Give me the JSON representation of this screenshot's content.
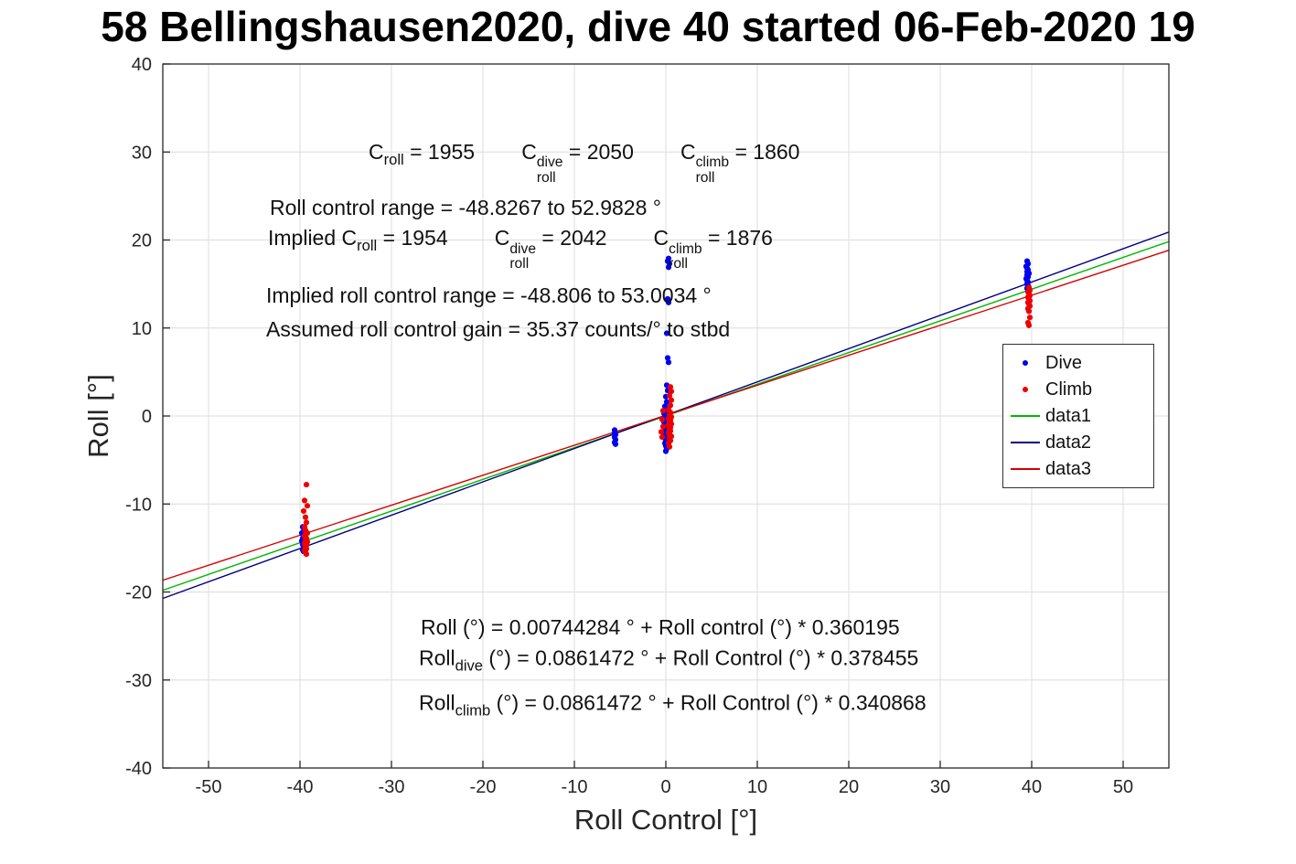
{
  "chart_data": {
    "type": "scatter",
    "title": "58 Bellingshausen2020, dive 40 started 06-Feb-2020 19",
    "xlabel": "Roll Control [°]",
    "ylabel": "Roll [°]",
    "xlim": [
      -55,
      55
    ],
    "ylim": [
      -40,
      40
    ],
    "xticks": [
      -50,
      -40,
      -30,
      -20,
      -10,
      0,
      10,
      20,
      30,
      40,
      50
    ],
    "yticks": [
      -40,
      -30,
      -20,
      -10,
      0,
      10,
      20,
      30,
      40
    ],
    "grid": true,
    "axis_color": "#262626",
    "grid_color": "#dcdcdc",
    "legend": {
      "position": "right-center",
      "entries": [
        {
          "label": "Dive",
          "marker": "dot",
          "color": "#0000EE"
        },
        {
          "label": "Climb",
          "marker": "dot",
          "color": "#EE0000"
        },
        {
          "label": "data1",
          "marker": "line",
          "color": "#00B800"
        },
        {
          "label": "data2",
          "marker": "line",
          "color": "#000080"
        },
        {
          "label": "data3",
          "marker": "line",
          "color": "#D40000"
        }
      ]
    },
    "series": [
      {
        "name": "Dive",
        "type": "scatter",
        "color": "#0000EE",
        "points": [
          [
            -39.7,
            -12.6
          ],
          [
            -39.5,
            -12.9
          ],
          [
            -39.6,
            -13.1
          ],
          [
            -39.8,
            -13.3
          ],
          [
            -39.4,
            -13.5
          ],
          [
            -39.6,
            -13.6
          ],
          [
            -39.5,
            -13.8
          ],
          [
            -39.7,
            -13.9
          ],
          [
            -39.6,
            -14.0
          ],
          [
            -39.5,
            -14.1
          ],
          [
            -39.8,
            -14.2
          ],
          [
            -39.6,
            -14.3
          ],
          [
            -39.4,
            -14.4
          ],
          [
            -39.6,
            -14.5
          ],
          [
            -39.7,
            -14.6
          ],
          [
            -39.5,
            -14.7
          ],
          [
            -39.6,
            -14.9
          ],
          [
            -39.5,
            -15.0
          ],
          [
            -39.7,
            -15.2
          ],
          [
            -39.6,
            -15.4
          ],
          [
            -5.6,
            -1.6
          ],
          [
            -5.6,
            -1.9
          ],
          [
            -5.5,
            -2.1
          ],
          [
            -5.6,
            -2.4
          ],
          [
            -5.5,
            -2.7
          ],
          [
            -5.6,
            -3.0
          ],
          [
            -5.5,
            -3.2
          ],
          [
            0.3,
            17.9
          ],
          [
            0.2,
            17.6
          ],
          [
            0.4,
            17.3
          ],
          [
            0.3,
            16.9
          ],
          [
            0.2,
            13.3
          ],
          [
            0.3,
            12.9
          ],
          [
            0.1,
            9.4
          ],
          [
            0.2,
            6.6
          ],
          [
            0.3,
            6.1
          ],
          [
            0.1,
            3.5
          ],
          [
            0.2,
            2.9
          ],
          [
            0.0,
            2.2
          ],
          [
            0.1,
            1.6
          ],
          [
            -0.1,
            1.1
          ],
          [
            0.0,
            0.8
          ],
          [
            0.2,
            0.5
          ],
          [
            -0.2,
            0.3
          ],
          [
            0.1,
            0.1
          ],
          [
            -0.1,
            -0.1
          ],
          [
            0.0,
            -0.3
          ],
          [
            0.2,
            -0.5
          ],
          [
            -0.2,
            -0.7
          ],
          [
            0.0,
            -0.9
          ],
          [
            0.1,
            -1.1
          ],
          [
            -0.1,
            -1.3
          ],
          [
            0.0,
            -1.5
          ],
          [
            0.1,
            -1.8
          ],
          [
            -0.1,
            -2.0
          ],
          [
            0.0,
            -2.2
          ],
          [
            0.1,
            -2.5
          ],
          [
            0.0,
            -2.8
          ],
          [
            -0.1,
            -3.1
          ],
          [
            0.0,
            -3.4
          ],
          [
            0.1,
            -3.7
          ],
          [
            0.0,
            -4.0
          ],
          [
            39.5,
            17.6
          ],
          [
            39.6,
            17.3
          ],
          [
            39.4,
            17.0
          ],
          [
            39.5,
            16.8
          ],
          [
            39.6,
            16.6
          ],
          [
            39.5,
            16.4
          ],
          [
            39.7,
            16.2
          ],
          [
            39.5,
            16.0
          ],
          [
            39.6,
            15.8
          ],
          [
            39.4,
            15.6
          ],
          [
            39.5,
            15.4
          ],
          [
            39.6,
            15.2
          ],
          [
            39.5,
            15.0
          ],
          [
            39.6,
            14.8
          ],
          [
            39.5,
            14.5
          ]
        ]
      },
      {
        "name": "Climb",
        "type": "scatter",
        "color": "#EE0000",
        "points": [
          [
            -39.3,
            -7.8
          ],
          [
            -39.5,
            -9.6
          ],
          [
            -39.2,
            -10.2
          ],
          [
            -39.6,
            -10.8
          ],
          [
            -39.4,
            -11.5
          ],
          [
            -39.3,
            -12.1
          ],
          [
            -39.5,
            -12.6
          ],
          [
            -39.4,
            -13.0
          ],
          [
            -39.2,
            -13.3
          ],
          [
            -39.5,
            -13.6
          ],
          [
            -39.3,
            -13.9
          ],
          [
            -39.4,
            -14.1
          ],
          [
            -39.2,
            -14.3
          ],
          [
            -39.5,
            -14.5
          ],
          [
            -39.3,
            -14.7
          ],
          [
            -39.4,
            -14.9
          ],
          [
            -39.3,
            -15.1
          ],
          [
            -39.5,
            -15.3
          ],
          [
            -39.4,
            -15.5
          ],
          [
            -39.3,
            -15.7
          ],
          [
            0.5,
            3.3
          ],
          [
            0.6,
            2.8
          ],
          [
            0.4,
            2.3
          ],
          [
            0.6,
            1.8
          ],
          [
            0.5,
            1.2
          ],
          [
            0.3,
            0.7
          ],
          [
            0.5,
            0.4
          ],
          [
            0.4,
            0.1
          ],
          [
            0.6,
            -0.1
          ],
          [
            0.3,
            -0.3
          ],
          [
            0.5,
            -0.5
          ],
          [
            0.4,
            -0.7
          ],
          [
            0.6,
            -0.9
          ],
          [
            0.3,
            -1.1
          ],
          [
            0.5,
            -1.3
          ],
          [
            0.4,
            -1.5
          ],
          [
            0.5,
            -1.7
          ],
          [
            0.3,
            -1.9
          ],
          [
            0.4,
            -2.1
          ],
          [
            0.6,
            -2.3
          ],
          [
            0.4,
            -2.5
          ],
          [
            0.5,
            -2.8
          ],
          [
            0.3,
            -3.1
          ],
          [
            0.4,
            -3.5
          ],
          [
            -0.3,
            0.6
          ],
          [
            -0.4,
            -0.4
          ],
          [
            -0.3,
            -1.2
          ],
          [
            -0.5,
            -1.8
          ],
          [
            -0.4,
            -2.4
          ],
          [
            39.7,
            14.6
          ],
          [
            39.8,
            14.3
          ],
          [
            39.6,
            14.1
          ],
          [
            39.7,
            13.9
          ],
          [
            39.8,
            13.7
          ],
          [
            39.6,
            13.5
          ],
          [
            39.7,
            13.3
          ],
          [
            39.8,
            13.1
          ],
          [
            39.6,
            12.9
          ],
          [
            39.7,
            12.7
          ],
          [
            39.8,
            12.5
          ],
          [
            39.6,
            12.2
          ],
          [
            39.7,
            11.9
          ],
          [
            39.8,
            11.2
          ],
          [
            39.6,
            10.6
          ],
          [
            39.7,
            10.3
          ]
        ]
      }
    ],
    "fit_lines": [
      {
        "name": "data1",
        "color": "#00B800",
        "intercept": 0.00744284,
        "slope": 0.360195
      },
      {
        "name": "data2",
        "color": "#000080",
        "intercept": 0.0861472,
        "slope": 0.378455
      },
      {
        "name": "data3",
        "color": "#D40000",
        "intercept": 0.0861472,
        "slope": 0.340868
      }
    ],
    "annotations": [
      {
        "name": "calibration-counts",
        "x": -32.5,
        "y": 28.8,
        "tokens": [
          {
            "t": "C"
          },
          {
            "sub": "roll"
          },
          {
            "t": " = 1955        C"
          },
          {
            "stk": [
              "dive",
              "roll"
            ]
          },
          {
            "t": " = 2050        C"
          },
          {
            "stk": [
              "climb",
              "roll"
            ]
          },
          {
            "t": " = 1860"
          }
        ]
      },
      {
        "name": "roll-control-range",
        "x": -43.3,
        "y": 23.7,
        "tokens": [
          {
            "t": "Roll control range = -48.8267 to 52.9828 °"
          }
        ]
      },
      {
        "name": "implied-calibration-counts",
        "x": -43.5,
        "y": 19.0,
        "tokens": [
          {
            "t": "Implied C"
          },
          {
            "sub": "roll"
          },
          {
            "t": " = 1954        C"
          },
          {
            "stk": [
              "dive",
              "roll"
            ]
          },
          {
            "t": " = 2042        C"
          },
          {
            "stk": [
              "climb",
              "roll"
            ]
          },
          {
            "t": " = 1876"
          }
        ]
      },
      {
        "name": "implied-roll-control-range",
        "x": -43.7,
        "y": 13.7,
        "tokens": [
          {
            "t": "Implied roll control range = -48.806 to 53.0034 °"
          }
        ]
      },
      {
        "name": "assumed-roll-control-gain",
        "x": -43.7,
        "y": 9.9,
        "tokens": [
          {
            "t": "Assumed roll control gain = 35.37 counts/° to stbd"
          }
        ]
      },
      {
        "name": "fit-equation-all",
        "x": -26.8,
        "y": -24.0,
        "tokens": [
          {
            "t": "Roll (°) = 0.00744284 ° + Roll control (°) * 0.360195"
          }
        ]
      },
      {
        "name": "fit-equation-dive",
        "x": -27.0,
        "y": -27.7,
        "tokens": [
          {
            "t": "Roll"
          },
          {
            "sub": "dive"
          },
          {
            "t": " (°) = 0.0861472 ° + Roll Control (°) * 0.378455"
          }
        ]
      },
      {
        "name": "fit-equation-climb",
        "x": -27.0,
        "y": -32.8,
        "tokens": [
          {
            "t": "Roll"
          },
          {
            "sub": "climb"
          },
          {
            "t": " (°) = 0.0861472 ° + Roll Control (°) * 0.340868"
          }
        ]
      }
    ]
  }
}
